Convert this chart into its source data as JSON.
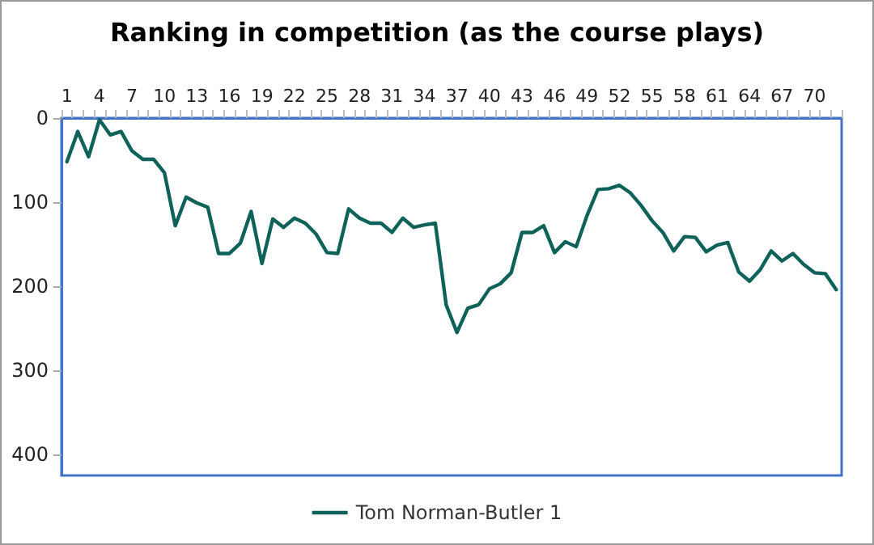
{
  "chart_data": {
    "type": "line",
    "title": "Ranking in competition (as the course plays)",
    "categories": [
      "1",
      null,
      null,
      "4",
      null,
      null,
      "7",
      null,
      null,
      "10",
      null,
      null,
      "13",
      null,
      null,
      "16",
      null,
      null,
      "19",
      null,
      null,
      "22",
      null,
      null,
      "25",
      null,
      null,
      "28",
      null,
      null,
      "31",
      null,
      null,
      "34",
      null,
      null,
      "37",
      null,
      null,
      "40",
      null,
      null,
      "43",
      null,
      null,
      "46",
      null,
      null,
      "49",
      null,
      null,
      "52",
      null,
      null,
      "55",
      null,
      null,
      "58",
      null,
      null,
      "61",
      null,
      null,
      "64",
      null,
      null,
      "67",
      null,
      null,
      "70",
      null,
      null
    ],
    "series": [
      {
        "name": "Tom Norman-Butler 1",
        "color": "#0e625a",
        "values": [
          52,
          16,
          46,
          2,
          20,
          16,
          39,
          49,
          49,
          65,
          128,
          94,
          101,
          106,
          161,
          161,
          149,
          111,
          173,
          120,
          130,
          119,
          125,
          138,
          160,
          161,
          108,
          119,
          125,
          125,
          136,
          119,
          130,
          127,
          125,
          222,
          255,
          226,
          222,
          203,
          197,
          184,
          136,
          136,
          128,
          160,
          147,
          153,
          116,
          85,
          84,
          80,
          89,
          104,
          122,
          136,
          158,
          141,
          142,
          159,
          151,
          148,
          183,
          194,
          180,
          158,
          170,
          161,
          174,
          184,
          185,
          204
        ]
      }
    ],
    "ylim": [
      425,
      0
    ],
    "yticks": [
      0,
      100,
      200,
      300,
      400
    ],
    "grid": false,
    "legend": "bottom",
    "marker": "none",
    "line_style": "solid"
  }
}
